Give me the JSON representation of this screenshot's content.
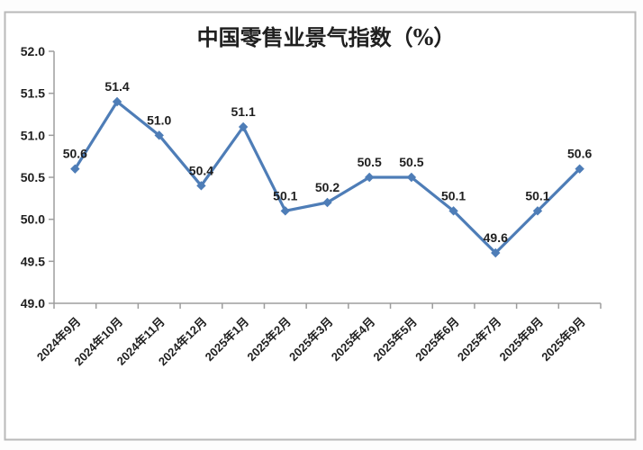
{
  "chart_data": {
    "type": "line",
    "title": "中国零售业景气指数（%）",
    "categories": [
      "2024年9月",
      "2024年10月",
      "2024年11月",
      "2024年12月",
      "2025年1月",
      "2025年2月",
      "2025年3月",
      "2025年4月",
      "2025年5月",
      "2025年6月",
      "2025年7月",
      "2025年8月",
      "2025年9月"
    ],
    "values": [
      50.6,
      51.4,
      51.0,
      50.4,
      51.1,
      50.1,
      50.2,
      50.5,
      50.5,
      50.1,
      49.6,
      50.1,
      50.6
    ],
    "data_labels": [
      "50.6",
      "51.4",
      "51.0",
      "50.4",
      "51.1",
      "50.1",
      "50.2",
      "50.5",
      "50.5",
      "50.1",
      "49.6",
      "50.1",
      "50.6"
    ],
    "xlabel": "",
    "ylabel": "",
    "ylim": [
      49.0,
      52.0
    ],
    "ytick_labels": [
      "49.0",
      "49.5",
      "50.0",
      "50.5",
      "51.0",
      "51.5",
      "52.0"
    ],
    "grid": false,
    "legend": "none",
    "marker": "diamond",
    "colors": {
      "series": "#4E7DB7",
      "axis": "#9d9d9d",
      "text": "#1f1f1f",
      "frame_border": "#b9b9b9",
      "background": "#ffffff"
    }
  }
}
